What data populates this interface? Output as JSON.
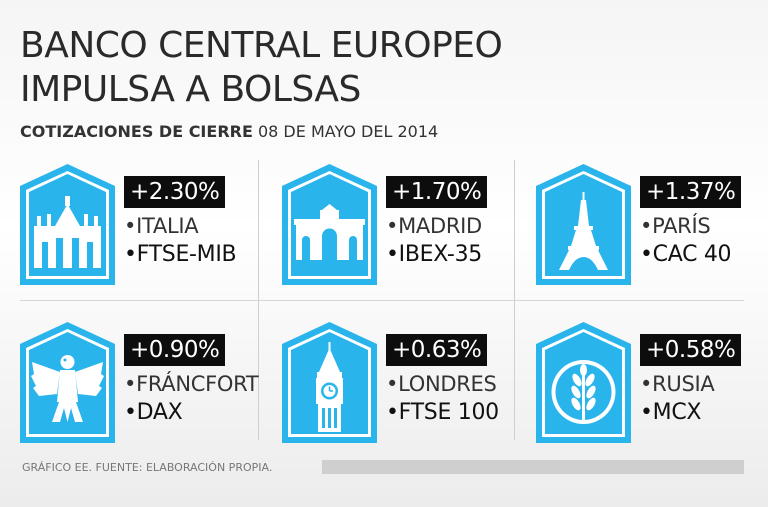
{
  "header": {
    "title_line1": "BANCO CENTRAL EUROPEO",
    "title_line2": "IMPULSA A BOLSAS",
    "subtitle_bold": "COTIZACIONES DE CIERRE",
    "subtitle_date": " 08 DE MAYO DEL 2014"
  },
  "colors": {
    "accent": "#2ab4ec",
    "badge": "#0d0d0d"
  },
  "markets": [
    {
      "change": "+2.30%",
      "place": "•ITALIA",
      "index": "•FTSE-MIB",
      "icon": "milan-cathedral-icon"
    },
    {
      "change": "+1.70%",
      "place": "•MADRID",
      "index": "•IBEX-35",
      "icon": "alcala-gate-icon"
    },
    {
      "change": "+1.37%",
      "place": "•PARÍS",
      "index": "•CAC 40",
      "icon": "eiffel-tower-icon"
    },
    {
      "change": "+0.90%",
      "place": "•FRÁNCFORT",
      "index": "•DAX",
      "icon": "german-eagle-icon"
    },
    {
      "change": "+0.63%",
      "place": "•LONDRES",
      "index": "•FTSE 100",
      "icon": "big-ben-icon"
    },
    {
      "change": "+0.58%",
      "place": "•RUSIA",
      "index": "•MCX",
      "icon": "wheat-emblem-icon"
    }
  ],
  "footer": {
    "source": "GRÁFICO EE. FUENTE: ELABORACIÓN PROPIA."
  }
}
